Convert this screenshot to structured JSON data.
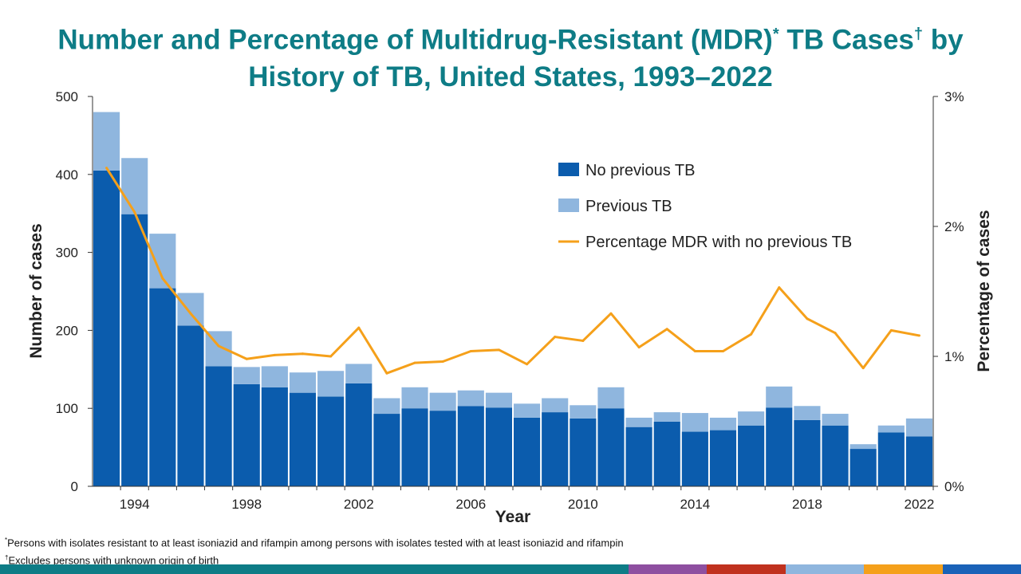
{
  "title_line1": "Number and Percentage of Multidrug-Resistant (MDR)",
  "title_mark1": "*",
  "title_mid": " TB Cases",
  "title_mark2": "†",
  "title_end": " by",
  "title_line2": "History of TB, United States, 1993–2022",
  "footnotes": [
    {
      "mark": "*",
      "text": "Persons with isolates resistant to at least isoniazid and rifampin among persons with isolates tested with at least isoniazid and rifampin"
    },
    {
      "mark": "†",
      "text": "Excludes persons with unknown origin of birth"
    }
  ],
  "footer_colors": [
    "#0e7c86",
    "#0e7c86",
    "#0e7c86",
    "#0e7c86",
    "#0e7c86",
    "#0e7c86",
    "#0e7c86",
    "#0e7c86",
    "#8e4fa0",
    "#c0311e",
    "#8fb6de",
    "#f5a01a",
    "#1a62b8"
  ],
  "chart_data": {
    "type": "bar",
    "stacked": true,
    "xlabel": "Year",
    "ylabel": "Number of cases",
    "y2label": "Percentage of cases",
    "ylim": [
      0,
      500
    ],
    "y2lim": [
      0,
      3
    ],
    "yticks": [
      "0",
      "100",
      "200",
      "300",
      "400",
      "500"
    ],
    "y2ticks": [
      "0%",
      "1%",
      "2%",
      "3%"
    ],
    "xticks": [
      "1994",
      "1998",
      "2002",
      "2006",
      "2010",
      "2014",
      "2018",
      "2022"
    ],
    "legend_position": "top-right",
    "categories": [
      1993,
      1994,
      1995,
      1996,
      1997,
      1998,
      1999,
      2000,
      2001,
      2002,
      2003,
      2004,
      2005,
      2006,
      2007,
      2008,
      2009,
      2010,
      2011,
      2012,
      2013,
      2014,
      2015,
      2016,
      2017,
      2018,
      2019,
      2020,
      2021,
      2022
    ],
    "series": [
      {
        "name": "No previous TB",
        "color": "#0b5cad",
        "type": "bar",
        "values": [
          405,
          349,
          254,
          206,
          154,
          131,
          127,
          120,
          115,
          132,
          93,
          100,
          97,
          103,
          101,
          88,
          95,
          87,
          100,
          76,
          83,
          70,
          72,
          78,
          101,
          85,
          78,
          48,
          69,
          64
        ]
      },
      {
        "name": "Previous TB",
        "color": "#8fb6de",
        "type": "bar",
        "values": [
          75,
          72,
          70,
          42,
          45,
          22,
          27,
          26,
          33,
          25,
          20,
          27,
          23,
          20,
          19,
          18,
          18,
          17,
          27,
          12,
          12,
          24,
          16,
          18,
          27,
          18,
          15,
          6,
          9,
          23
        ]
      },
      {
        "name": "Percentage MDR with no previous TB",
        "color": "#f5a01a",
        "type": "line",
        "axis": "right",
        "unit": "%",
        "values": [
          2.45,
          2.11,
          1.6,
          1.33,
          1.08,
          0.98,
          1.01,
          1.02,
          1.0,
          1.22,
          0.87,
          0.95,
          0.96,
          1.04,
          1.05,
          0.94,
          1.15,
          1.12,
          1.33,
          1.07,
          1.21,
          1.04,
          1.04,
          1.17,
          1.53,
          1.29,
          1.18,
          0.91,
          1.2,
          1.16
        ]
      }
    ]
  }
}
